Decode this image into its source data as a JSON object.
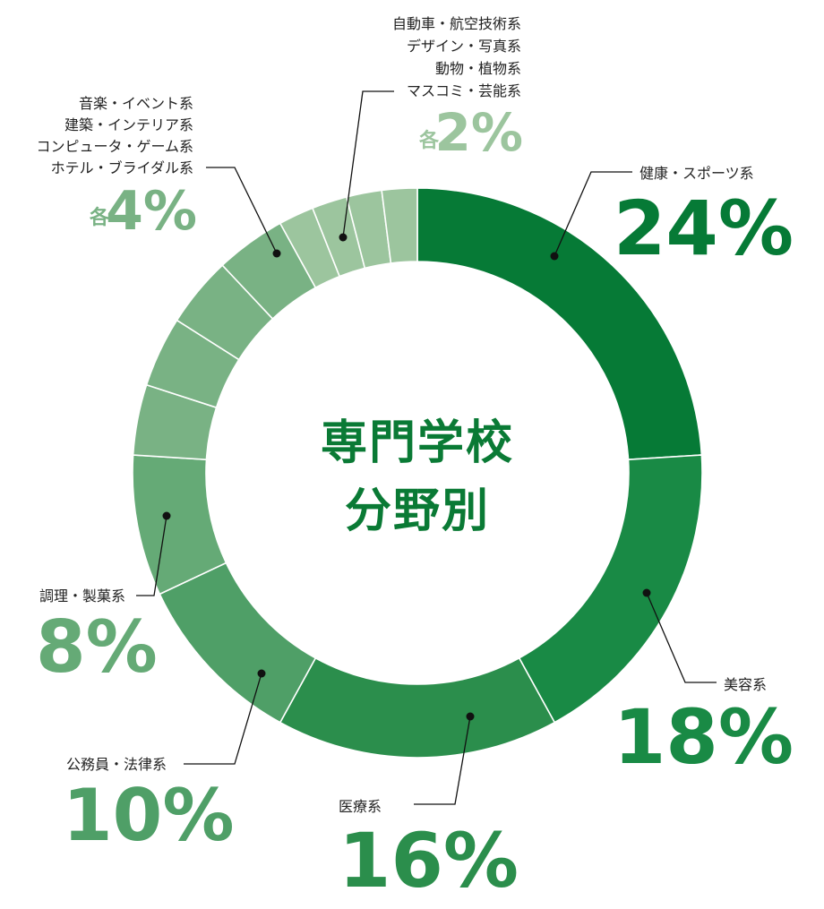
{
  "center": {
    "line1": "専門学校",
    "line2": "分野別"
  },
  "chart_data": {
    "type": "pie",
    "style": "donut",
    "slices": [
      {
        "label": "健康・スポーツ系",
        "value": 24,
        "color": "#067a36"
      },
      {
        "label": "美容系",
        "value": 18,
        "color": "#198a45"
      },
      {
        "label": "医療系",
        "value": 16,
        "color": "#2b8e4c"
      },
      {
        "label": "公務員・法律系",
        "value": 10,
        "color": "#4f9f67"
      },
      {
        "label": "調理・製菓系",
        "value": 8,
        "color": "#65aa76"
      },
      {
        "label": "ホテル・ブライダル系",
        "value": 4,
        "color": "#79b284"
      },
      {
        "label": "コンピュータ・ゲーム系",
        "value": 4,
        "color": "#79b284"
      },
      {
        "label": "建築・インテリア系",
        "value": 4,
        "color": "#79b284"
      },
      {
        "label": "音楽・イベント系",
        "value": 4,
        "color": "#79b284"
      },
      {
        "label": "マスコミ・芸能系",
        "value": 2,
        "color": "#9cc59e"
      },
      {
        "label": "動物・植物系",
        "value": 2,
        "color": "#9cc59e"
      },
      {
        "label": "デザイン・写真系",
        "value": 2,
        "color": "#9cc59e"
      },
      {
        "label": "自動車・航空技術系",
        "value": 2,
        "color": "#9cc59e"
      }
    ],
    "labels": {
      "health": {
        "name": "健康・スポーツ系",
        "pct": "24%"
      },
      "beauty": {
        "name": "美容系",
        "pct": "18%"
      },
      "medical": {
        "name": "医療系",
        "pct": "16%"
      },
      "civil": {
        "name": "公務員・法律系",
        "pct": "10%"
      },
      "cooking": {
        "name": "調理・製菓系",
        "pct": "8%"
      },
      "group4": {
        "names": [
          "音楽・イベント系",
          "建築・インテリア系",
          "コンピュータ・ゲーム系",
          "ホテル・ブライダル系"
        ],
        "prefix": "各",
        "pct": "4%"
      },
      "group2": {
        "names": [
          "自動車・航空技術系",
          "デザイン・写真系",
          "動物・植物系",
          "マスコミ・芸能系"
        ],
        "prefix": "各",
        "pct": "2%"
      }
    }
  }
}
